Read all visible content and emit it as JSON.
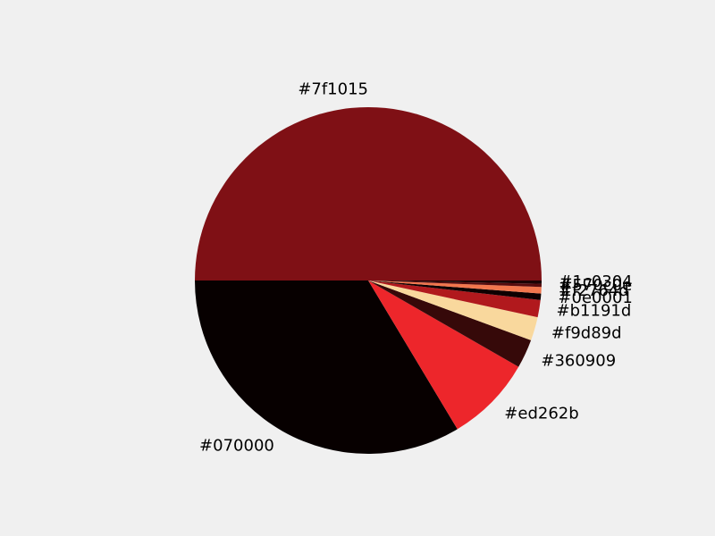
{
  "chart_data": {
    "type": "pie",
    "title": "",
    "start_angle_deg": 0,
    "direction": "counterclockwise",
    "categories": [
      "#7f1015",
      "#070000",
      "#ed262b",
      "#360909",
      "#f9d89d",
      "#b1191d",
      "#0e0001",
      "#f2764d",
      "#570c0e",
      "#1c0304"
    ],
    "values": [
      50.0,
      33.6,
      8.1,
      2.7,
      2.2,
      1.6,
      0.6,
      0.6,
      0.3,
      0.3
    ],
    "colors": [
      "#7f1015",
      "#070000",
      "#ed262b",
      "#360909",
      "#f9d89d",
      "#b1191d",
      "#0e0001",
      "#f2764d",
      "#570c0e",
      "#1c0304"
    ]
  }
}
